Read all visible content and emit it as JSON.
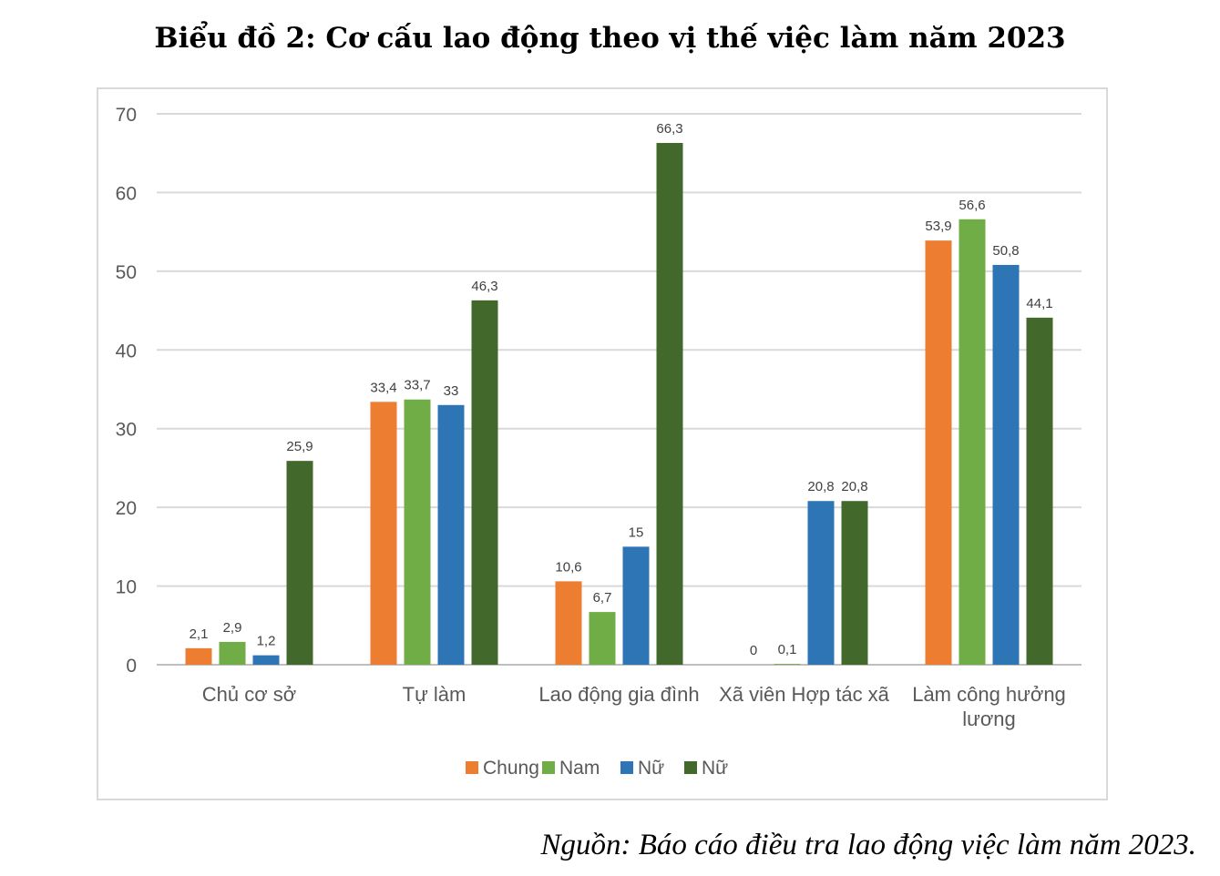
{
  "title": "Biểu đồ 2: Cơ cấu lao động theo vị thế việc làm năm 2023",
  "source": "Nguồn: Báo cáo điều tra lao động việc làm năm 2023.",
  "chart_data": {
    "type": "bar",
    "title": "Biểu đồ 2: Cơ cấu lao động theo vị thế việc làm năm 2023",
    "categories": [
      [
        "Chủ cơ sở"
      ],
      [
        "Tự làm"
      ],
      [
        "Lao động gia đình"
      ],
      [
        "Xã viên Hợp tác xã"
      ],
      [
        "Làm công hưởng",
        "lương"
      ]
    ],
    "series": [
      {
        "name": "Chung",
        "color": "#ed7d31",
        "values": [
          2.1,
          33.4,
          10.6,
          0,
          53.9
        ],
        "labels": [
          "2,1",
          "33,4",
          "10,6",
          "0",
          "53,9"
        ]
      },
      {
        "name": "Nam",
        "color": "#70ad47",
        "values": [
          2.9,
          33.7,
          6.7,
          0.1,
          56.6
        ],
        "labels": [
          "2,9",
          "33,7",
          "6,7",
          "0,1",
          "56,6"
        ]
      },
      {
        "name": "Nữ",
        "color": "#2e75b6",
        "values": [
          1.2,
          33,
          15,
          20.8,
          50.8
        ],
        "labels": [
          "1,2",
          "33",
          "15",
          "20,8",
          "50,8"
        ]
      },
      {
        "name": "Nữ",
        "color": "#43682b",
        "values": [
          25.9,
          46.3,
          66.3,
          20.8,
          44.1
        ],
        "labels": [
          "25,9",
          "46,3",
          "66,3",
          "20,8",
          "44,1"
        ]
      }
    ],
    "yticks": [
      "0",
      "10",
      "20",
      "30",
      "40",
      "50",
      "60",
      "70"
    ],
    "ylim": [
      0,
      70
    ],
    "grid": true,
    "legend": "bottom"
  }
}
